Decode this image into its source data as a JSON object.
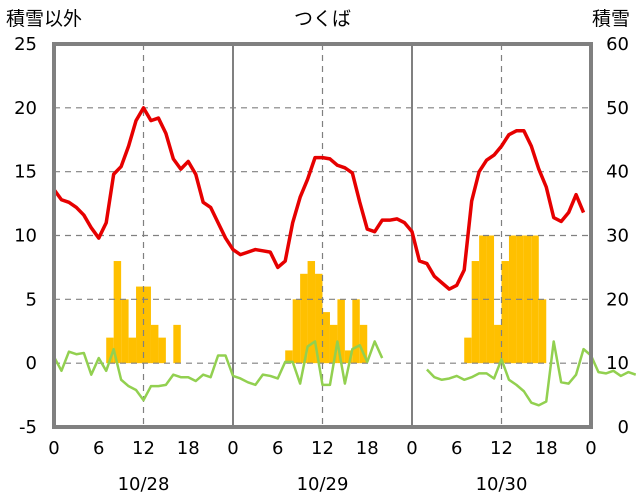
{
  "chart_data": {
    "type": "bar+line",
    "title": "つくば",
    "left_axis_label": "積雪以外",
    "right_axis_label": "積雪",
    "left_ylim": [
      -5,
      25
    ],
    "left_yticks": [
      "25",
      "20",
      "15",
      "10",
      "5",
      "0",
      "-5"
    ],
    "right_ylim": [
      0,
      60
    ],
    "right_yticks": [
      "60",
      "50",
      "40",
      "30",
      "20",
      "10",
      "0"
    ],
    "x_range_hours": [
      0,
      72
    ],
    "x_ticks": [
      {
        "hour": 0,
        "label": "0"
      },
      {
        "hour": 6,
        "label": "6"
      },
      {
        "hour": 12,
        "label": "12"
      },
      {
        "hour": 18,
        "label": "18"
      },
      {
        "hour": 24,
        "label": "0"
      },
      {
        "hour": 30,
        "label": "6"
      },
      {
        "hour": 36,
        "label": "12"
      },
      {
        "hour": 42,
        "label": "18"
      },
      {
        "hour": 48,
        "label": "0"
      },
      {
        "hour": 54,
        "label": "6"
      },
      {
        "hour": 60,
        "label": "12"
      },
      {
        "hour": 66,
        "label": "18"
      },
      {
        "hour": 72,
        "label": "0"
      }
    ],
    "date_labels": [
      {
        "hour": 12,
        "label": "10/28"
      },
      {
        "hour": 36,
        "label": "10/29"
      },
      {
        "hour": 60,
        "label": "10/30"
      }
    ],
    "day_separators_hours": [
      24,
      48
    ],
    "noon_lines_hours": [
      12,
      36,
      60
    ],
    "colors": {
      "temperature": "#e60000",
      "precip": "#ffc000",
      "green": "#92d050",
      "frame": "#808080",
      "grid": "#808080"
    },
    "series": [
      {
        "name": "red-line",
        "axis": "left",
        "values": [
          13.6,
          12.8,
          12.6,
          12.2,
          11.6,
          10.6,
          9.8,
          11.0,
          14.8,
          15.4,
          17.0,
          19.0,
          20.0,
          19.0,
          19.2,
          18.0,
          16.0,
          15.2,
          15.8,
          14.8,
          12.6,
          12.2,
          11.0,
          9.8,
          8.9,
          8.5,
          8.7,
          8.9,
          8.8,
          8.7,
          7.5,
          8.0,
          11.0,
          13.0,
          14.4,
          16.1,
          16.1,
          16.0,
          15.5,
          15.3,
          14.9,
          12.6,
          10.5,
          10.3,
          11.2,
          11.2,
          11.3,
          11.0,
          10.3,
          8.0,
          7.8,
          6.8,
          6.3,
          5.8,
          6.1,
          7.3,
          12.7,
          15.0,
          15.9,
          16.3,
          17.0,
          17.9,
          18.2,
          18.2,
          17.0,
          15.2,
          13.8,
          11.4,
          11.1,
          11.8,
          13.2,
          11.8
        ],
        "start_hour": 0
      },
      {
        "name": "precip-bars",
        "axis": "left",
        "values": [
          0,
          0,
          0,
          0,
          0,
          0,
          0,
          2,
          8,
          5,
          2,
          6,
          6,
          3,
          2,
          0,
          3,
          0,
          0,
          0,
          0,
          0,
          0,
          0,
          0,
          0,
          0,
          0,
          0,
          0,
          0,
          1,
          5,
          7,
          8,
          7,
          4,
          3,
          5,
          1,
          5,
          3,
          0,
          0,
          0,
          0,
          0,
          0,
          0,
          0,
          0,
          0,
          0,
          0,
          0,
          2,
          8,
          10,
          10,
          3,
          8,
          10,
          10,
          10,
          10,
          5,
          0,
          0,
          0,
          0,
          0,
          0
        ],
        "start_hour": 0
      },
      {
        "name": "green-line-day1",
        "axis": "left",
        "values": [
          0.5,
          -0.6,
          0.9,
          0.7,
          0.8,
          -0.9,
          0.4,
          -0.6,
          1.1,
          -1.3,
          -1.8,
          -2.1,
          -2.9,
          -1.8,
          -1.8,
          -1.7,
          -0.9,
          -1.1,
          -1.1,
          -1.4,
          -0.9,
          -1.1,
          0.6,
          0.6,
          -1.0
        ],
        "start_hour": 0
      },
      {
        "name": "green-line-day2",
        "axis": "left",
        "values": [
          -1.0,
          -1.2,
          -1.5,
          -1.7,
          -0.9,
          -1.0,
          -1.2,
          0.1,
          0.1,
          -1.6,
          1.3,
          1.7,
          -1.7,
          -1.7,
          1.7,
          -1.6,
          1.1,
          1.4,
          0.1,
          1.7,
          0.4
        ],
        "start_hour": 24
      },
      {
        "name": "green-line-day3",
        "axis": "left",
        "values": [
          -0.5,
          -1.1,
          -1.3,
          -1.2,
          -1.0,
          -1.3,
          -1.1,
          -0.8,
          -0.8,
          -1.2,
          0.3,
          -1.3,
          -1.7,
          -2.2,
          -3.1,
          -3.3,
          -3.0,
          1.7,
          -1.5,
          -1.6,
          -0.9,
          1.1,
          0.6,
          -0.7,
          -0.8,
          -0.6,
          -1.0,
          -0.7,
          -0.9
        ],
        "start_hour": 50
      }
    ]
  }
}
